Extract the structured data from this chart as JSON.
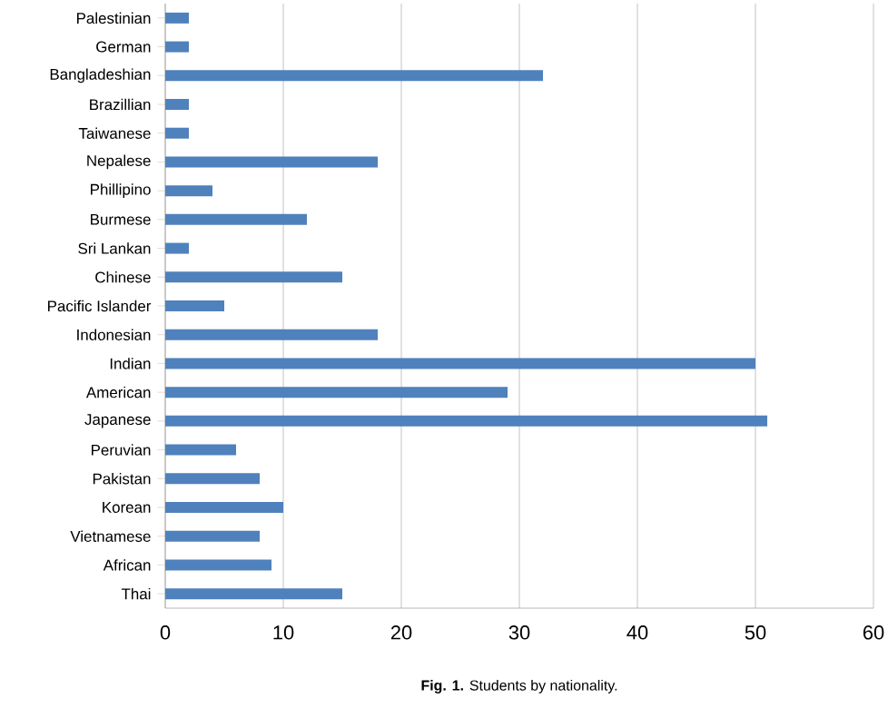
{
  "chart_data": {
    "type": "bar",
    "orientation": "horizontal",
    "categories": [
      "Palestinian",
      "German",
      "Bangladeshian",
      "Brazillian",
      "Taiwanese",
      "Nepalese",
      "Phillipino",
      "Burmese",
      "Sri Lankan",
      "Chinese",
      "Pacific Islander",
      "Indonesian",
      "Indian",
      "American",
      "Japanese",
      "Peruvian",
      "Pakistan",
      "Korean",
      "Vietnamese",
      "African",
      "Thai"
    ],
    "values": [
      2,
      2,
      32,
      2,
      2,
      18,
      4,
      12,
      2,
      15,
      5,
      18,
      50,
      29,
      51,
      6,
      8,
      10,
      8,
      9,
      15
    ],
    "color": "#4f81bd",
    "xlim": [
      0,
      60
    ],
    "xticks": [
      0,
      10,
      20,
      30,
      40,
      50,
      60
    ],
    "grid": "x",
    "annotations": [
      "**Fig. 1.** Students by nationality."
    ]
  }
}
